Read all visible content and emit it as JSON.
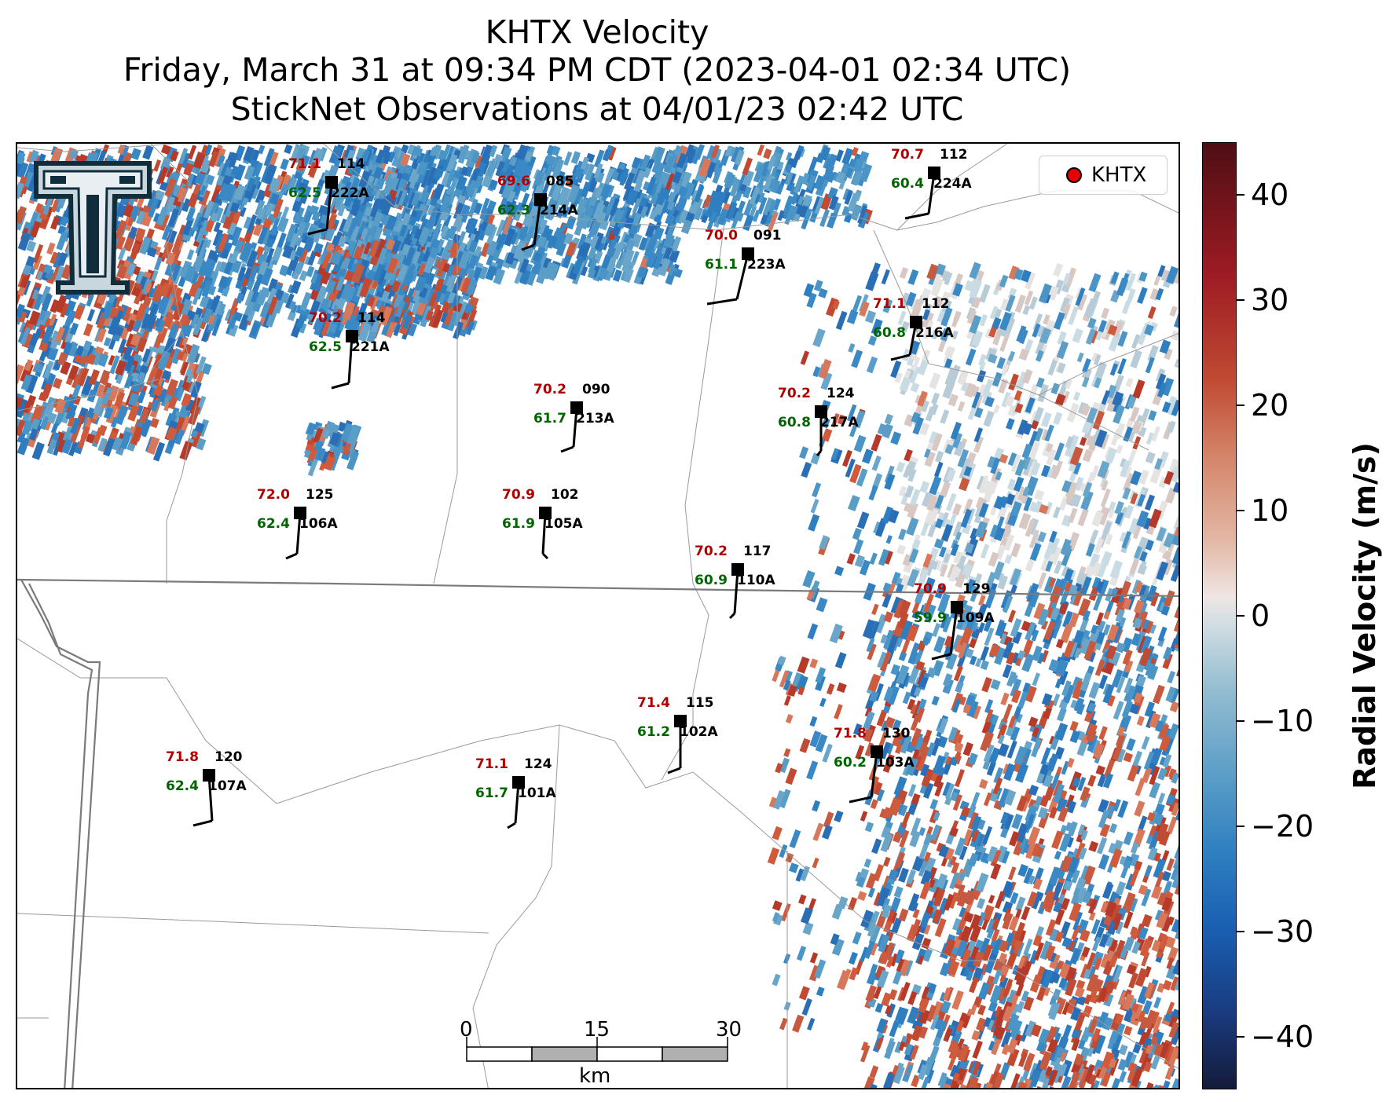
{
  "title": {
    "line1": "KHTX Velocity",
    "line2": "Friday, March 31 at 09:34 PM CDT (2023-04-01 02:34 UTC)",
    "line3": "StickNet Observations at 04/01/23 02:42 UTC"
  },
  "legend": {
    "label": "KHTX"
  },
  "colorbar": {
    "label": "Radial Velocity (m/s)",
    "ticks": [
      "40",
      "30",
      "20",
      "10",
      "0",
      "−10",
      "−20",
      "−30",
      "−40"
    ],
    "range": [
      -45,
      45
    ]
  },
  "scale_bar": {
    "labels": [
      "0",
      "15",
      "30"
    ],
    "unit": "km"
  },
  "logo": {
    "icon": "texas-tech-t-logo"
  },
  "colors": {
    "temperature": "#b00000",
    "dewpoint": "#006400",
    "station": "#000000"
  },
  "stations": [
    {
      "id": "222A",
      "temp": "71.1",
      "dew": "62.5",
      "dir": "114"
    },
    {
      "id": "214A",
      "temp": "69.6",
      "dew": "62.3",
      "dir": "085"
    },
    {
      "id": "223A",
      "temp": "70.0",
      "dew": "61.1",
      "dir": "091"
    },
    {
      "id": "224A",
      "temp": "70.7",
      "dew": "60.4",
      "dir": "112"
    },
    {
      "id": "221A",
      "temp": "70.2",
      "dew": "62.5",
      "dir": "114"
    },
    {
      "id": "216A",
      "temp": "71.1",
      "dew": "60.8",
      "dir": "112"
    },
    {
      "id": "213A",
      "temp": "70.2",
      "dew": "61.7",
      "dir": "090"
    },
    {
      "id": "217A",
      "temp": "70.2",
      "dew": "60.8",
      "dir": "124"
    },
    {
      "id": "106A",
      "temp": "72.0",
      "dew": "62.4",
      "dir": "125"
    },
    {
      "id": "105A",
      "temp": "70.9",
      "dew": "61.9",
      "dir": "102"
    },
    {
      "id": "110A",
      "temp": "70.2",
      "dew": "60.9",
      "dir": "117"
    },
    {
      "id": "109A",
      "temp": "70.9",
      "dew": "59.9",
      "dir": "129"
    },
    {
      "id": "102A",
      "temp": "71.4",
      "dew": "61.2",
      "dir": "115"
    },
    {
      "id": "103A",
      "temp": "71.8",
      "dew": "60.2",
      "dir": "130"
    },
    {
      "id": "107A",
      "temp": "71.8",
      "dew": "62.4",
      "dir": "120"
    },
    {
      "id": "101A",
      "temp": "71.1",
      "dew": "61.7",
      "dir": "124"
    }
  ]
}
